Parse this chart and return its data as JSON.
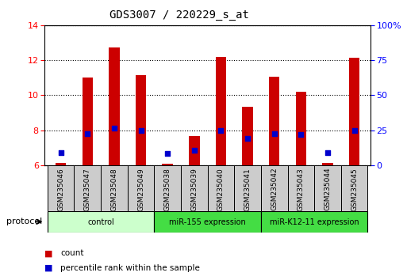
{
  "title": "GDS3007 / 220229_s_at",
  "samples": [
    "GSM235046",
    "GSM235047",
    "GSM235048",
    "GSM235049",
    "GSM235038",
    "GSM235039",
    "GSM235040",
    "GSM235041",
    "GSM235042",
    "GSM235043",
    "GSM235044",
    "GSM235045"
  ],
  "count_values": [
    6.15,
    11.0,
    12.75,
    11.15,
    6.1,
    7.65,
    12.2,
    9.35,
    11.05,
    10.2,
    6.15,
    12.15
  ],
  "percentile_values": [
    6.7,
    7.8,
    8.1,
    8.0,
    6.65,
    6.85,
    8.0,
    7.55,
    7.8,
    7.75,
    6.7,
    8.0
  ],
  "ymin": 6,
  "ymax": 14,
  "yticks_left": [
    6,
    8,
    10,
    12,
    14
  ],
  "yticks_right": [
    0,
    25,
    50,
    75,
    100
  ],
  "bar_color": "#cc0000",
  "dot_color": "#0000cc",
  "groups": [
    {
      "label": "control",
      "start": 0,
      "end": 4,
      "color": "#ccffcc"
    },
    {
      "label": "miR-155 expression",
      "start": 4,
      "end": 8,
      "color": "#44dd44"
    },
    {
      "label": "miR-K12-11 expression",
      "start": 8,
      "end": 12,
      "color": "#44dd44"
    }
  ],
  "protocol_label": "protocol",
  "legend_count": "count",
  "legend_percentile": "percentile rank within the sample",
  "bar_width": 0.4
}
